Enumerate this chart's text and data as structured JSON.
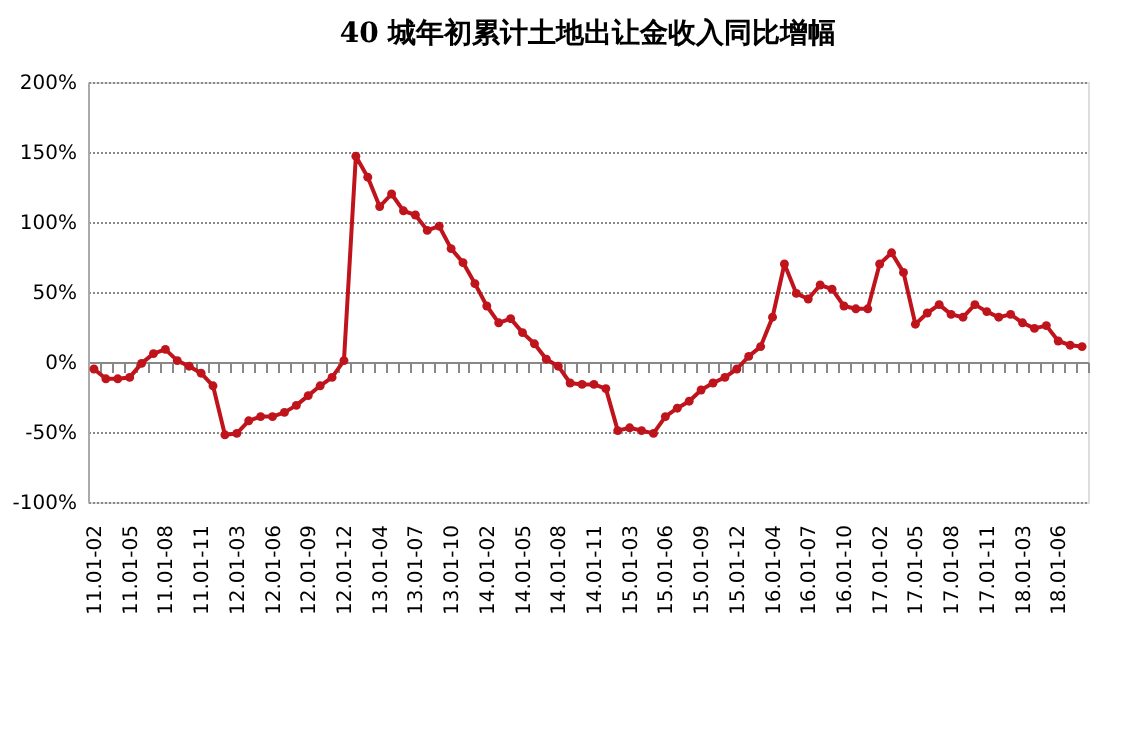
{
  "chart_data": {
    "type": "line",
    "title": "40 城年初累计土地出让金收入同比增幅",
    "categories": [
      "11.01-02",
      null,
      null,
      "11.01-05",
      null,
      null,
      "11.01-08",
      null,
      null,
      "11.01-11",
      null,
      null,
      "12.01-03",
      null,
      null,
      "12.01-06",
      null,
      null,
      "12.01-09",
      null,
      null,
      "12.01-12",
      null,
      null,
      "13.01-04",
      null,
      null,
      "13.01-07",
      null,
      null,
      "13.01-10",
      null,
      null,
      "14.01-02",
      null,
      null,
      "14.01-05",
      null,
      null,
      "14.01-08",
      null,
      null,
      "14.01-11",
      null,
      null,
      "15.01-03",
      null,
      null,
      "15.01-06",
      null,
      null,
      "15.01-09",
      null,
      null,
      "15.01-12",
      null,
      null,
      "16.01-04",
      null,
      null,
      "16.01-07",
      null,
      null,
      "16.01-10",
      null,
      null,
      "17.01-02",
      null,
      null,
      "17.01-05",
      null,
      null,
      "17.01-08",
      null,
      null,
      "17.01-11",
      null,
      null,
      "18.01-03",
      null,
      null,
      "18.01-06",
      null,
      null
    ],
    "series": [
      {
        "color": "#c0141c",
        "values": [
          -5,
          -12,
          -12,
          -11,
          -1,
          6,
          9,
          1,
          -3,
          -8,
          -17,
          -52,
          -51,
          -42,
          -39,
          -39,
          -36,
          -31,
          -24,
          -17,
          -11,
          1,
          147,
          132,
          111,
          120,
          108,
          105,
          94,
          97,
          81,
          71,
          56,
          40,
          28,
          31,
          21,
          13,
          2,
          -3,
          -15,
          -16,
          -16,
          -19,
          -49,
          -47,
          -49,
          -51,
          -39,
          -33,
          -28,
          -20,
          -15,
          -11,
          -5,
          4,
          11,
          32,
          70,
          49,
          45,
          55,
          52,
          40,
          38,
          38,
          70,
          78,
          64,
          27,
          35,
          41,
          34,
          32,
          41,
          36,
          32,
          34,
          28,
          24,
          26,
          15,
          12,
          11
        ]
      }
    ],
    "ylim": [
      -100,
      200
    ],
    "yticks": [
      {
        "value": -100,
        "label": "-100%"
      },
      {
        "value": -50,
        "label": "-50%"
      },
      {
        "value": 0,
        "label": "0%"
      },
      {
        "value": 50,
        "label": "50%"
      },
      {
        "value": 100,
        "label": "100%"
      },
      {
        "value": 150,
        "label": "150%"
      },
      {
        "value": 200,
        "label": "200%"
      }
    ],
    "grid": "y",
    "marker": "circle",
    "line_style": "solid"
  }
}
